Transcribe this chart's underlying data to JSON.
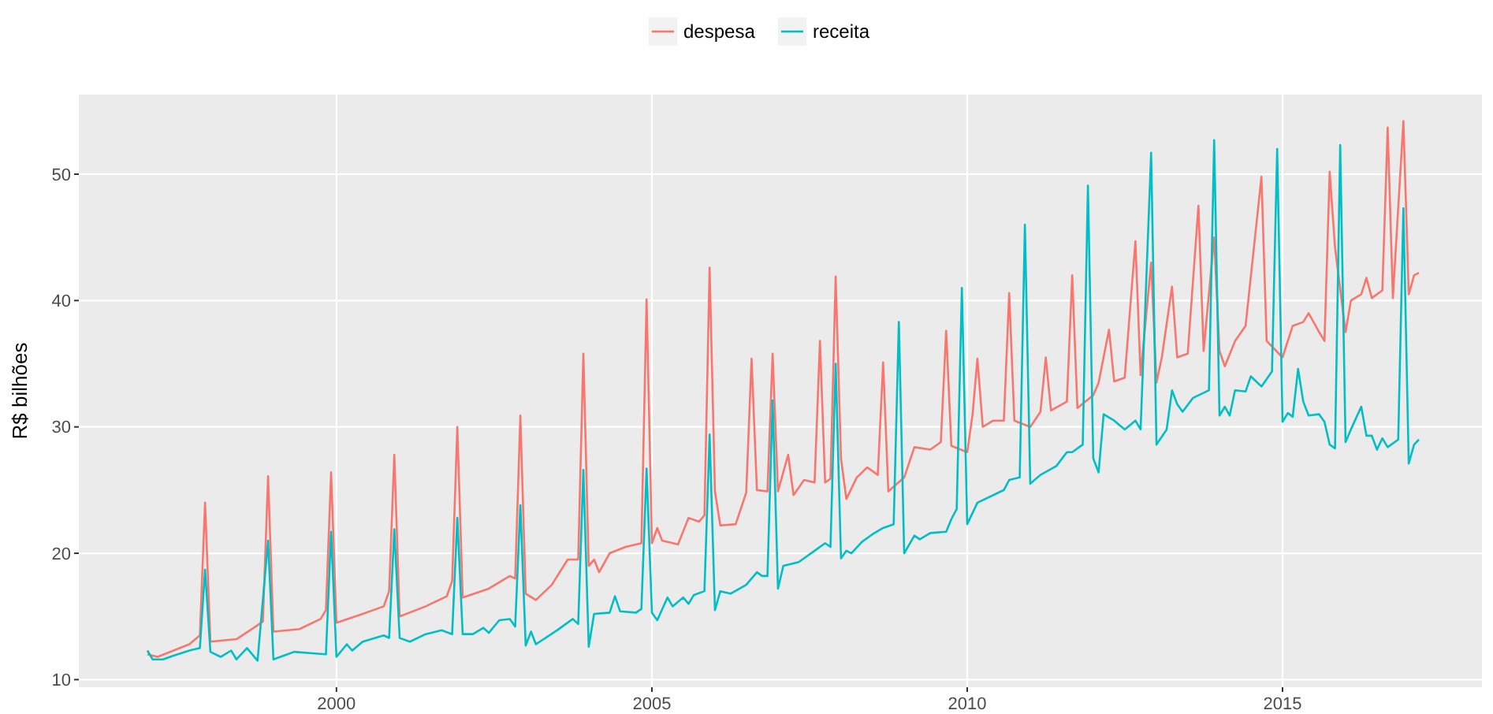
{
  "chart_data": {
    "type": "line",
    "ylabel": "R$ bilhões",
    "xlim": [
      "1995-12",
      "2018-03"
    ],
    "xticks": [
      "2000",
      "2005",
      "2010",
      "2015"
    ],
    "ylim": [
      9.4,
      56.3
    ],
    "yticks": [
      10,
      20,
      30,
      40,
      50
    ],
    "grid": true,
    "legend": "top",
    "line_style": "solid",
    "marker": "none",
    "series": [
      {
        "name": "despesa",
        "color": "#f8766d",
        "x": [
          "1997-01",
          "1997-03",
          "1997-06",
          "1997-09",
          "1997-11",
          "1997-12",
          "1998-01",
          "1998-06",
          "1998-10",
          "1998-11",
          "1998-12",
          "1999-01",
          "1999-06",
          "1999-10",
          "1999-11",
          "1999-12",
          "2000-01",
          "2000-06",
          "2000-10",
          "2000-11",
          "2000-12",
          "2001-01",
          "2001-06",
          "2001-10",
          "2001-11",
          "2001-12",
          "2002-01",
          "2002-06",
          "2002-10",
          "2002-11",
          "2002-12",
          "2003-01",
          "2003-03",
          "2003-06",
          "2003-09",
          "2003-11",
          "2003-12",
          "2004-01",
          "2004-02",
          "2004-03",
          "2004-05",
          "2004-08",
          "2004-11",
          "2004-12",
          "2005-01",
          "2005-02",
          "2005-03",
          "2005-06",
          "2005-08",
          "2005-10",
          "2005-11",
          "2005-12",
          "2006-01",
          "2006-02",
          "2006-05",
          "2006-07",
          "2006-08",
          "2006-09",
          "2006-11",
          "2006-12",
          "2007-01",
          "2007-03",
          "2007-04",
          "2007-06",
          "2007-08",
          "2007-09",
          "2007-10",
          "2007-11",
          "2007-12",
          "2008-01",
          "2008-02",
          "2008-04",
          "2008-06",
          "2008-08",
          "2008-09",
          "2008-10",
          "2009-01",
          "2009-03",
          "2009-06",
          "2009-08",
          "2009-09",
          "2009-10",
          "2010-01",
          "2010-02",
          "2010-03",
          "2010-04",
          "2010-06",
          "2010-08",
          "2010-09",
          "2010-10",
          "2011-01",
          "2011-03",
          "2011-04",
          "2011-05",
          "2011-08",
          "2011-09",
          "2011-10",
          "2012-01",
          "2012-02",
          "2012-04",
          "2012-05",
          "2012-07",
          "2012-09",
          "2012-10",
          "2012-12",
          "2013-01",
          "2013-02",
          "2013-04",
          "2013-05",
          "2013-07",
          "2013-09",
          "2013-10",
          "2013-12",
          "2014-01",
          "2014-02",
          "2014-04",
          "2014-06",
          "2014-09",
          "2014-10",
          "2015-01",
          "2015-03",
          "2015-05",
          "2015-06",
          "2015-08",
          "2015-09",
          "2015-10",
          "2015-11",
          "2016-01",
          "2016-02",
          "2016-04",
          "2016-05",
          "2016-06",
          "2016-08",
          "2016-09",
          "2016-10",
          "2016-12",
          "2017-01",
          "2017-02",
          "2017-03"
        ],
        "values": [
          12.0,
          11.8,
          12.3,
          12.8,
          13.5,
          24.0,
          13.0,
          13.2,
          14.3,
          14.6,
          26.1,
          13.8,
          14.0,
          14.8,
          15.5,
          26.4,
          14.5,
          15.2,
          15.8,
          17.0,
          27.8,
          15.0,
          15.8,
          16.6,
          17.8,
          30.0,
          16.5,
          17.2,
          18.2,
          18.0,
          30.9,
          16.8,
          16.3,
          17.5,
          19.5,
          19.5,
          35.8,
          19.0,
          19.5,
          18.5,
          20.0,
          20.5,
          20.8,
          40.1,
          20.8,
          22.0,
          21.0,
          20.7,
          22.8,
          22.5,
          23.0,
          42.6,
          24.9,
          22.2,
          22.3,
          24.8,
          35.4,
          25.0,
          24.9,
          35.8,
          24.9,
          27.8,
          24.6,
          25.8,
          25.6,
          36.8,
          25.6,
          25.9,
          41.9,
          27.5,
          24.3,
          26.0,
          26.8,
          26.2,
          35.1,
          24.9,
          26.0,
          28.4,
          28.2,
          28.8,
          37.6,
          28.5,
          28.0,
          31.0,
          35.4,
          30.0,
          30.5,
          30.5,
          40.6,
          30.5,
          30.0,
          31.2,
          35.5,
          31.3,
          32.0,
          42.0,
          31.5,
          32.5,
          33.5,
          37.7,
          33.6,
          33.9,
          44.7,
          34.1,
          43.0,
          33.5,
          35.5,
          41.1,
          35.5,
          35.8,
          47.5,
          36.0,
          45.0,
          36.0,
          34.8,
          36.8,
          38.0,
          49.8,
          36.8,
          35.5,
          38.0,
          38.3,
          39.0,
          37.5,
          36.8,
          50.2,
          44.2,
          37.5,
          40.0,
          40.5,
          41.8,
          40.2,
          40.8,
          53.7,
          40.2,
          54.2,
          40.5,
          42.0,
          42.2
        ]
      },
      {
        "name": "receita",
        "color": "#00bfc4",
        "x": [
          "1997-01",
          "1997-02",
          "1997-04",
          "1997-06",
          "1997-09",
          "1997-11",
          "1997-12",
          "1998-01",
          "1998-03",
          "1998-05",
          "1998-06",
          "1998-08",
          "1998-10",
          "1998-12",
          "1999-01",
          "1999-03",
          "1999-05",
          "1999-08",
          "1999-11",
          "1999-12",
          "2000-01",
          "2000-03",
          "2000-04",
          "2000-06",
          "2000-10",
          "2000-11",
          "2000-12",
          "2001-01",
          "2001-03",
          "2001-06",
          "2001-09",
          "2001-11",
          "2001-12",
          "2002-01",
          "2002-03",
          "2002-05",
          "2002-06",
          "2002-08",
          "2002-10",
          "2002-11",
          "2002-12",
          "2003-01",
          "2003-02",
          "2003-03",
          "2003-07",
          "2003-10",
          "2003-11",
          "2003-12",
          "2004-01",
          "2004-02",
          "2004-05",
          "2004-06",
          "2004-07",
          "2004-10",
          "2004-11",
          "2004-12",
          "2005-01",
          "2005-02",
          "2005-04",
          "2005-05",
          "2005-07",
          "2005-08",
          "2005-09",
          "2005-11",
          "2005-12",
          "2006-01",
          "2006-02",
          "2006-04",
          "2006-07",
          "2006-09",
          "2006-10",
          "2006-11",
          "2006-12",
          "2007-01",
          "2007-02",
          "2007-05",
          "2007-08",
          "2007-10",
          "2007-11",
          "2007-12",
          "2008-01",
          "2008-02",
          "2008-03",
          "2008-05",
          "2008-07",
          "2008-09",
          "2008-11",
          "2008-12",
          "2009-01",
          "2009-03",
          "2009-04",
          "2009-06",
          "2009-09",
          "2009-10",
          "2009-11",
          "2009-12",
          "2010-01",
          "2010-03",
          "2010-06",
          "2010-08",
          "2010-09",
          "2010-11",
          "2010-12",
          "2011-01",
          "2011-03",
          "2011-06",
          "2011-08",
          "2011-09",
          "2011-11",
          "2011-12",
          "2012-01",
          "2012-02",
          "2012-03",
          "2012-05",
          "2012-07",
          "2012-09",
          "2012-10",
          "2012-12",
          "2013-01",
          "2013-03",
          "2013-04",
          "2013-05",
          "2013-06",
          "2013-08",
          "2013-11",
          "2013-12",
          "2014-01",
          "2014-02",
          "2014-03",
          "2014-04",
          "2014-06",
          "2014-07",
          "2014-09",
          "2014-11",
          "2014-12",
          "2015-01",
          "2015-02",
          "2015-03",
          "2015-04",
          "2015-05",
          "2015-06",
          "2015-08",
          "2015-09",
          "2015-10",
          "2015-11",
          "2015-12",
          "2016-01",
          "2016-02",
          "2016-04",
          "2016-05",
          "2016-06",
          "2016-07",
          "2016-08",
          "2016-09",
          "2016-11",
          "2016-12",
          "2017-01",
          "2017-02",
          "2017-03"
        ],
        "values": [
          12.3,
          11.6,
          11.6,
          11.9,
          12.3,
          12.5,
          18.7,
          12.2,
          11.8,
          12.3,
          11.6,
          12.5,
          11.5,
          21.0,
          11.6,
          11.9,
          12.2,
          12.1,
          12.0,
          21.7,
          11.8,
          12.8,
          12.3,
          13.0,
          13.5,
          13.3,
          21.9,
          13.3,
          13.0,
          13.6,
          13.9,
          13.6,
          22.8,
          13.6,
          13.6,
          14.1,
          13.7,
          14.7,
          14.8,
          14.2,
          23.8,
          12.7,
          13.8,
          12.8,
          13.9,
          14.8,
          14.4,
          26.6,
          12.6,
          15.2,
          15.3,
          16.6,
          15.4,
          15.3,
          15.6,
          26.7,
          15.3,
          14.7,
          16.5,
          15.8,
          16.5,
          16.0,
          16.7,
          17.0,
          29.4,
          15.5,
          17.0,
          16.8,
          17.5,
          18.5,
          18.2,
          18.2,
          32.1,
          17.2,
          19.0,
          19.3,
          20.2,
          20.8,
          20.5,
          35.0,
          19.6,
          20.2,
          20.0,
          20.9,
          21.5,
          22.0,
          22.3,
          38.3,
          20.0,
          21.4,
          21.1,
          21.6,
          21.7,
          22.7,
          23.5,
          41.0,
          22.3,
          24.0,
          24.6,
          25.0,
          25.8,
          26.0,
          46.0,
          25.5,
          26.2,
          26.9,
          28.0,
          28.0,
          28.6,
          49.1,
          27.5,
          26.4,
          31.0,
          30.5,
          29.8,
          30.5,
          29.8,
          51.7,
          28.6,
          29.8,
          32.9,
          31.8,
          31.2,
          32.3,
          32.9,
          52.7,
          30.9,
          31.6,
          30.9,
          32.9,
          32.8,
          34.0,
          33.2,
          34.4,
          52.0,
          30.4,
          31.1,
          30.8,
          34.6,
          32.0,
          30.9,
          31.0,
          30.4,
          28.6,
          28.3,
          52.3,
          28.8,
          29.8,
          31.6,
          29.3,
          29.3,
          28.2,
          29.1,
          28.4,
          29.0,
          47.3,
          27.1,
          28.6,
          29.0
        ]
      }
    ]
  }
}
